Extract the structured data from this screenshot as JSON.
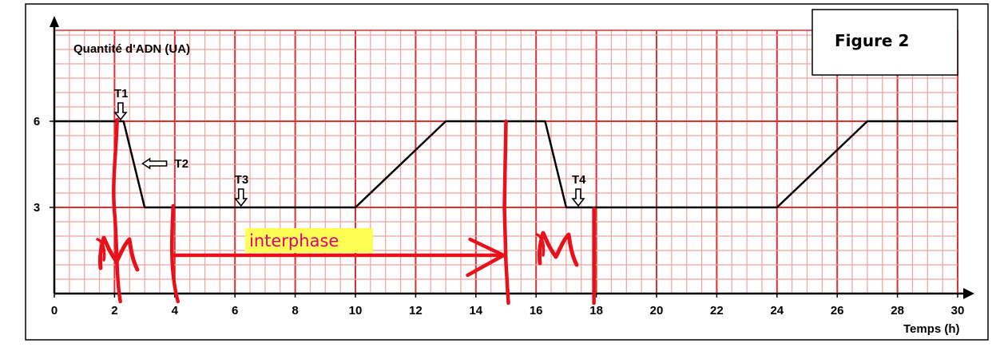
{
  "chart_data": {
    "type": "line",
    "title": "Figure 2",
    "ylabel": "Quantité d'ADN (UA)",
    "xlabel": "Temps (h)",
    "xlim": [
      0,
      30
    ],
    "ylim": [
      0,
      8
    ],
    "x_ticks": [
      "0",
      "2",
      "4",
      "6",
      "8",
      "10",
      "12",
      "14",
      "16",
      "18",
      "20",
      "22",
      "24",
      "26",
      "28",
      "30"
    ],
    "y_ticks": [
      "3",
      "6"
    ],
    "grid": true,
    "series": [
      {
        "x": [
          0,
          2.3,
          3,
          10,
          13,
          16.3,
          17,
          24,
          27,
          30
        ],
        "y": [
          6,
          6,
          3,
          3,
          6,
          6,
          3,
          3,
          6,
          6
        ]
      }
    ],
    "markers": [
      {
        "label": "T1",
        "x": 2.2,
        "y": 6
      },
      {
        "label": "T2",
        "x": 2.8,
        "y": 4.5
      },
      {
        "label": "T3",
        "x": 6.2,
        "y": 3
      },
      {
        "label": "T4",
        "x": 17.4,
        "y": 3
      }
    ],
    "handwritten_annotations": {
      "phase_left": "M",
      "phase_middle": "interphase",
      "phase_right": "M",
      "arrow_from": 4,
      "arrow_to": 15,
      "vertical_marks_x": [
        1,
        4,
        15,
        18
      ]
    },
    "colors": {
      "grid_major": "#e03030",
      "grid_minor": "#f2a0a0",
      "curve": "#000000",
      "handwriting": "#e8101a",
      "highlight": "#ffff55",
      "handwriting_text": "#e0007a"
    }
  }
}
